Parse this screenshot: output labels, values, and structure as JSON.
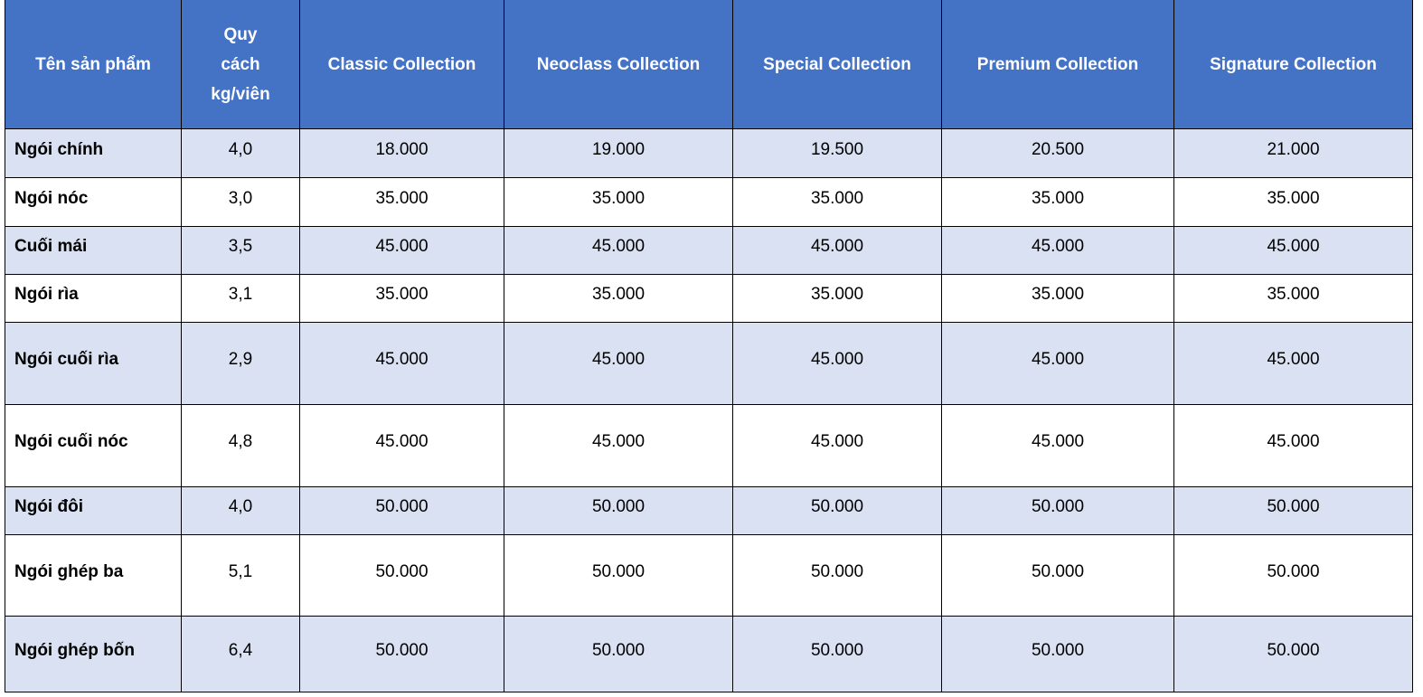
{
  "table": {
    "headers": [
      "Tên sản phẩm",
      "Quy cách kg/viên",
      "Classic Collection",
      "Neoclass Collection",
      "Special Collection",
      "Premium Collection",
      "Signature Collection"
    ],
    "rows": [
      [
        "Ngói chính",
        "4,0",
        "18.000",
        "19.000",
        "19.500",
        "20.500",
        "21.000"
      ],
      [
        "Ngói nóc",
        "3,0",
        "35.000",
        "35.000",
        "35.000",
        "35.000",
        "35.000"
      ],
      [
        "Cuối mái",
        "3,5",
        "45.000",
        "45.000",
        "45.000",
        "45.000",
        "45.000"
      ],
      [
        "Ngói rìa",
        "3,1",
        "35.000",
        "35.000",
        "35.000",
        "35.000",
        "35.000"
      ],
      [
        "Ngói cuối rìa",
        "2,9",
        "45.000",
        "45.000",
        "45.000",
        "45.000",
        "45.000"
      ],
      [
        "Ngói cuối nóc",
        "4,8",
        "45.000",
        "45.000",
        "45.000",
        "45.000",
        "45.000"
      ],
      [
        "Ngói đôi",
        "4,0",
        "50.000",
        "50.000",
        "50.000",
        "50.000",
        "50.000"
      ],
      [
        "Ngói ghép ba",
        "5,1",
        "50.000",
        "50.000",
        "50.000",
        "50.000",
        "50.000"
      ],
      [
        "Ngói ghép bốn",
        "6,4",
        "50.000",
        "50.000",
        "50.000",
        "50.000",
        "50.000"
      ]
    ]
  },
  "colors": {
    "header_bg": "#4472C4",
    "alt_row_bg": "#D9E1F2"
  }
}
